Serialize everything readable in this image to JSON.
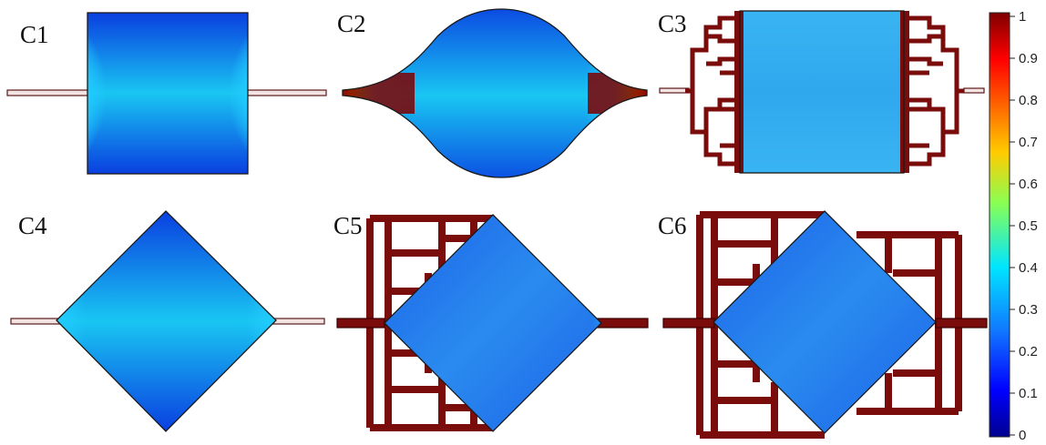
{
  "panels": [
    {
      "id": "c1",
      "label": "C1"
    },
    {
      "id": "c2",
      "label": "C2"
    },
    {
      "id": "c3",
      "label": "C3"
    },
    {
      "id": "c4",
      "label": "C4"
    },
    {
      "id": "c5",
      "label": "C5"
    },
    {
      "id": "c6",
      "label": "C6"
    }
  ],
  "colorbar": {
    "ticks": [
      "1",
      "0.9",
      "0.8",
      "0.7",
      "0.6",
      "0.5",
      "0.4",
      "0.3",
      "0.2",
      "0.1",
      "0"
    ],
    "colors": [
      "#7f0000",
      "#ff0000",
      "#ff9900",
      "#ffff00",
      "#66ff66",
      "#00ffff",
      "#0099ff",
      "#0000ff",
      "#00008f"
    ]
  }
}
